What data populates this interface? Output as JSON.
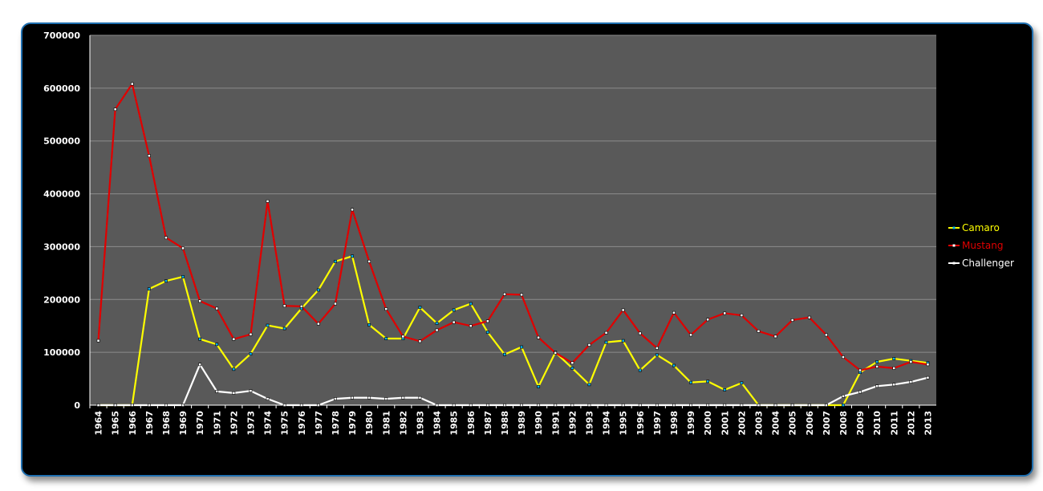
{
  "chart_data": {
    "type": "line",
    "title": "",
    "xlabel": "",
    "ylabel": "",
    "ylim": [
      0,
      700000
    ],
    "yticks": [
      "0",
      "100000",
      "200000",
      "300000",
      "400000",
      "500000",
      "600000",
      "700000"
    ],
    "y_tick_values": [
      0,
      100000,
      200000,
      300000,
      400000,
      500000,
      600000,
      700000
    ],
    "grid": true,
    "legend_position": "right",
    "plot_background": "#595959",
    "categories": [
      "1964",
      "1965",
      "1966",
      "1967",
      "1968",
      "1969",
      "1970",
      "1971",
      "1972",
      "1973",
      "1974",
      "1975",
      "1976",
      "1977",
      "1978",
      "1979",
      "1980",
      "1981",
      "1982",
      "1983",
      "1984",
      "1985",
      "1986",
      "1987",
      "1988",
      "1989",
      "1990",
      "1991",
      "1992",
      "1993",
      "1994",
      "1995",
      "1996",
      "1997",
      "1998",
      "1999",
      "2000",
      "2001",
      "2002",
      "2003",
      "2004",
      "2005",
      "2006",
      "2007",
      "2008",
      "2009",
      "2010",
      "2011",
      "2012",
      "2013"
    ],
    "series": [
      {
        "name": "Camaro",
        "color": "#ffff00",
        "marker_color": "#00b0f0",
        "values": [
          0,
          0,
          0,
          220000,
          235000,
          243000,
          125000,
          115000,
          68000,
          97000,
          151000,
          145000,
          183000,
          218000,
          272000,
          282000,
          152000,
          126000,
          126000,
          185000,
          155000,
          180000,
          192000,
          138000,
          96000,
          110000,
          35000,
          100000,
          70000,
          39000,
          119000,
          122000,
          66000,
          95000,
          75000,
          43000,
          45000,
          29000,
          42000,
          0,
          0,
          0,
          0,
          0,
          0,
          62000,
          82000,
          88000,
          84000,
          80000
        ]
      },
      {
        "name": "Mustang",
        "color": "#e00000",
        "marker_color": "#ffffff",
        "values": [
          122000,
          560000,
          608000,
          472000,
          317000,
          297000,
          197000,
          183000,
          125000,
          134000,
          386000,
          188000,
          187000,
          154000,
          192000,
          370000,
          272000,
          182000,
          130000,
          121000,
          142000,
          157000,
          150000,
          159000,
          210000,
          209000,
          128000,
          99000,
          80000,
          114000,
          137000,
          180000,
          136000,
          108000,
          175000,
          133000,
          162000,
          174000,
          170000,
          140000,
          130000,
          161000,
          166000,
          133000,
          91000,
          66000,
          73000,
          70000,
          82000,
          77000
        ]
      },
      {
        "name": "Challenger",
        "color": "#ffffff",
        "marker_color": "#ffffff",
        "values": [
          0,
          0,
          0,
          0,
          0,
          0,
          77000,
          26000,
          23000,
          27000,
          12000,
          0,
          0,
          0,
          12000,
          14000,
          14000,
          12000,
          14000,
          14000,
          0,
          0,
          0,
          0,
          0,
          0,
          0,
          0,
          0,
          0,
          0,
          0,
          0,
          0,
          0,
          0,
          0,
          0,
          0,
          0,
          0,
          0,
          0,
          0,
          17000,
          25000,
          36000,
          39000,
          44000,
          52000
        ]
      }
    ]
  }
}
